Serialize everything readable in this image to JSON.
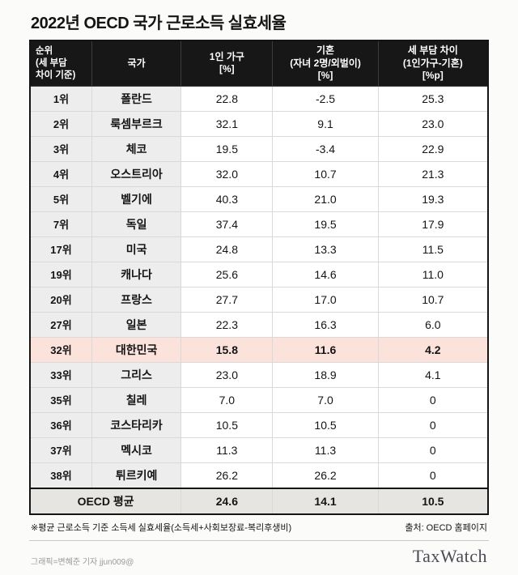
{
  "title": "2022년 OECD 국가 근로소득 실효세율",
  "chart_data": {
    "type": "table",
    "title": "2022년 OECD 국가 근로소득 실효세율",
    "columns": [
      {
        "label": "순위\n(세 부담\n차이 기준)"
      },
      {
        "label": "국가"
      },
      {
        "label": "1인 가구\n[%]"
      },
      {
        "label": "기혼\n(자녀 2명/외벌이)\n[%]"
      },
      {
        "label": "세 부담 차이\n(1인가구-기혼)\n[%p]"
      }
    ],
    "rows": [
      {
        "rank": "1위",
        "country": "폴란드",
        "single": "22.8",
        "married": "-2.5",
        "diff": "25.3",
        "highlight": false
      },
      {
        "rank": "2위",
        "country": "룩셈부르크",
        "single": "32.1",
        "married": "9.1",
        "diff": "23.0",
        "highlight": false
      },
      {
        "rank": "3위",
        "country": "체코",
        "single": "19.5",
        "married": "-3.4",
        "diff": "22.9",
        "highlight": false
      },
      {
        "rank": "4위",
        "country": "오스트리아",
        "single": "32.0",
        "married": "10.7",
        "diff": "21.3",
        "highlight": false
      },
      {
        "rank": "5위",
        "country": "벨기에",
        "single": "40.3",
        "married": "21.0",
        "diff": "19.3",
        "highlight": false
      },
      {
        "rank": "7위",
        "country": "독일",
        "single": "37.4",
        "married": "19.5",
        "diff": "17.9",
        "highlight": false
      },
      {
        "rank": "17위",
        "country": "미국",
        "single": "24.8",
        "married": "13.3",
        "diff": "11.5",
        "highlight": false
      },
      {
        "rank": "19위",
        "country": "캐나다",
        "single": "25.6",
        "married": "14.6",
        "diff": "11.0",
        "highlight": false
      },
      {
        "rank": "20위",
        "country": "프랑스",
        "single": "27.7",
        "married": "17.0",
        "diff": "10.7",
        "highlight": false
      },
      {
        "rank": "27위",
        "country": "일본",
        "single": "22.3",
        "married": "16.3",
        "diff": "6.0",
        "highlight": false
      },
      {
        "rank": "32위",
        "country": "대한민국",
        "single": "15.8",
        "married": "11.6",
        "diff": "4.2",
        "highlight": true
      },
      {
        "rank": "33위",
        "country": "그리스",
        "single": "23.0",
        "married": "18.9",
        "diff": "4.1",
        "highlight": false
      },
      {
        "rank": "35위",
        "country": "칠레",
        "single": "7.0",
        "married": "7.0",
        "diff": "0",
        "highlight": false
      },
      {
        "rank": "36위",
        "country": "코스타리카",
        "single": "10.5",
        "married": "10.5",
        "diff": "0",
        "highlight": false
      },
      {
        "rank": "37위",
        "country": "멕시코",
        "single": "11.3",
        "married": "11.3",
        "diff": "0",
        "highlight": false
      },
      {
        "rank": "38위",
        "country": "튀르키예",
        "single": "26.2",
        "married": "26.2",
        "diff": "0",
        "highlight": false
      }
    ],
    "summary_row": {
      "label": "OECD 평균",
      "single": "24.6",
      "married": "14.1",
      "diff": "10.5"
    }
  },
  "notes": {
    "left": "※평균 근로소득 기준 소득세 실효세율(소득세+사회보장료-복리후생비)",
    "right": "출처: OECD 홈페이지"
  },
  "footer": {
    "credit": "그래픽=변혜준 기자 jjun009@",
    "logo": "TaxWatch"
  },
  "colors": {
    "header_bg": "#171717",
    "header_text": "#ffffff",
    "label_column_bg": "#ededed",
    "highlight_row_bg": "#fbe3dc",
    "summary_row_bg": "#e6e5e1",
    "inner_border": "#d9d9d9",
    "outer_border": "#141414"
  }
}
